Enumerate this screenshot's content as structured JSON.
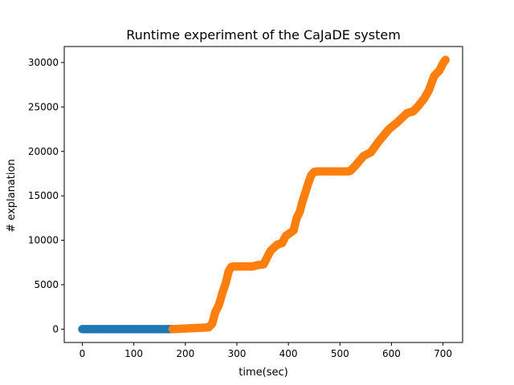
{
  "chart_data": {
    "type": "scatter",
    "title": "Runtime experiment of the CaJaDE system",
    "xlabel": "time(sec)",
    "ylabel": "# explanation",
    "xlim": [
      -35,
      738
    ],
    "ylim": [
      -1500,
      31800
    ],
    "xticks": [
      0,
      100,
      200,
      300,
      400,
      500,
      600,
      700
    ],
    "yticks": [
      0,
      5000,
      10000,
      15000,
      20000,
      25000,
      30000
    ],
    "grid": false,
    "legend": "none",
    "series": [
      {
        "color": "#1f77b4",
        "x": [
          0,
          175
        ],
        "y": [
          0,
          0
        ]
      },
      {
        "color": "#ff7f0e",
        "x": [
          175,
          245,
          252,
          258,
          265,
          272,
          279,
          284,
          289,
          293,
          298,
          330,
          340,
          352,
          365,
          378,
          388,
          395,
          410,
          416,
          422,
          427,
          433,
          439,
          444,
          450,
          456,
          460,
          472,
          487,
          496,
          515,
          520,
          530,
          546,
          560,
          575,
          595,
          610,
          630,
          642,
          652,
          664,
          672,
          683,
          693,
          701,
          705
        ],
        "y": [
          0,
          200,
          600,
          1900,
          2700,
          4100,
          5300,
          6500,
          7000,
          7050,
          7050,
          7050,
          7200,
          7300,
          8800,
          9500,
          9700,
          10500,
          11100,
          12500,
          13200,
          14300,
          15400,
          16500,
          17300,
          17700,
          17750,
          17750,
          17750,
          17750,
          17750,
          17750,
          17800,
          18400,
          19500,
          19900,
          21100,
          22500,
          23200,
          24300,
          24500,
          25100,
          26000,
          26800,
          28500,
          29100,
          30000,
          30300
        ]
      }
    ]
  }
}
